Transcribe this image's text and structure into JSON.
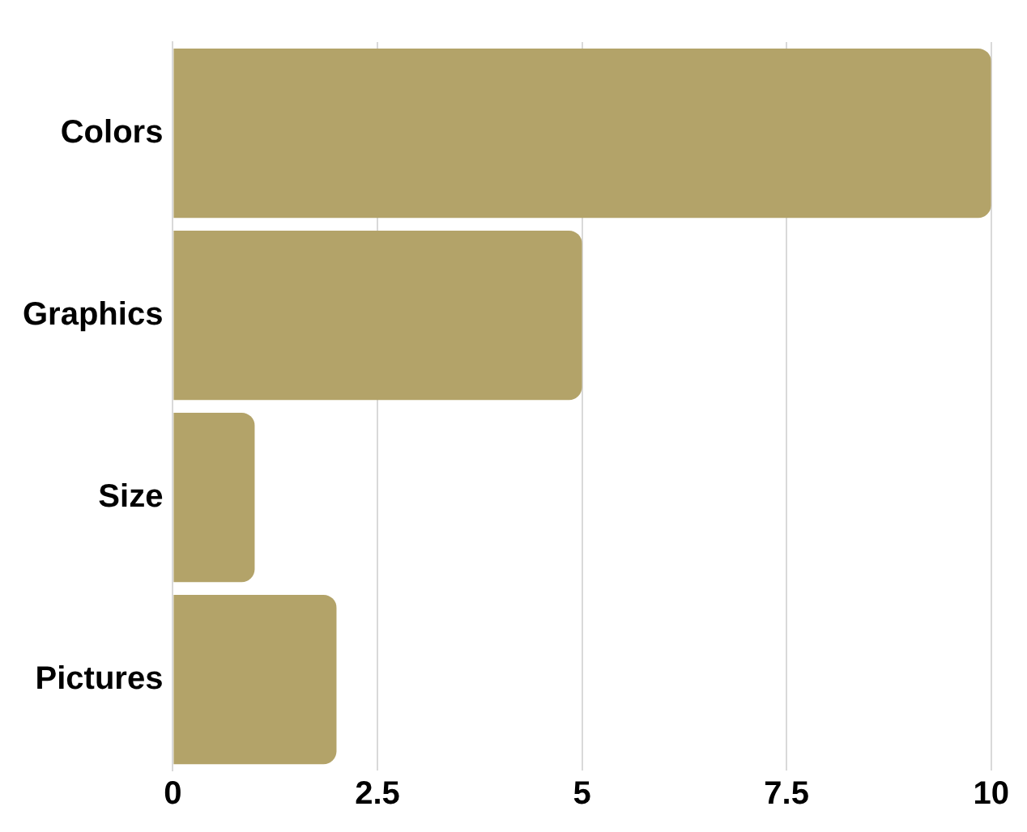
{
  "chart_data": {
    "type": "bar",
    "orientation": "horizontal",
    "categories": [
      "Colors",
      "Graphics",
      "Size",
      "Pictures"
    ],
    "values": [
      10,
      5,
      1,
      2
    ],
    "color": "#b3a369",
    "xlim": [
      0,
      10
    ],
    "xticks": [
      0,
      2.5,
      5,
      7.5,
      10
    ],
    "grid": "x"
  }
}
